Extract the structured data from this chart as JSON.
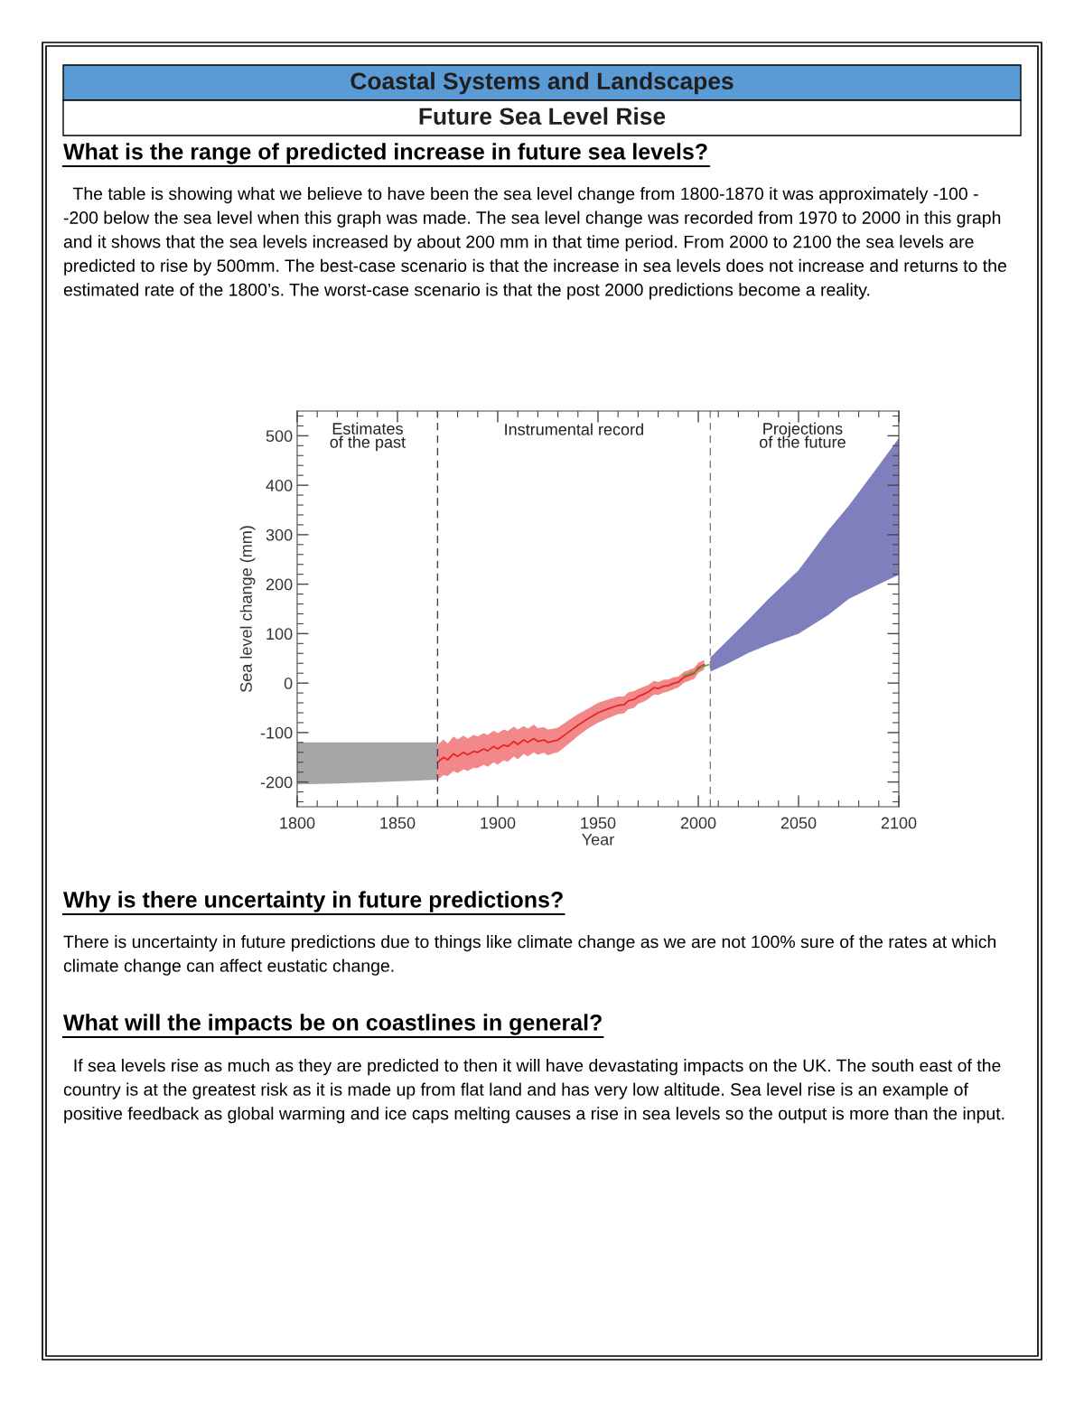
{
  "chart_data": {
    "type": "line",
    "title": "Coastal Systems and Landscapes",
    "subtitle": "Future Sea Level Rise",
    "xlabel": "Year",
    "ylabel": "Sea level change (mm)",
    "annotations": [
      "What is the range of predicted increase in future sea levels?",
      " The table is showing what we believe to have been the sea level change from 1800-1870 it was approximately -100 - -200 below the sea level when this graph was made. The sea level change was recorded from 1970 to 2000 in this graph and it shows that the sea levels increased by about 200 mm in that time period. From 2000 to 2100 the sea levels are predicted to rise by 500mm. The best-case scenario is that the increase in sea levels does not increase and returns to the estimated rate of the 1800’s. The worst-case scenario is that the post 2000 predictions become a reality.",
      "Why is there uncertainty in future predictions?",
      "There is uncertainty in future predictions due to things like climate change as we are not 100% sure of the rates at which climate change can affect eustatic change.",
      "What will the impacts be on coastlines in general?",
      " If sea levels rise as much as they are predicted to then it will have devastating impacts on the UK. The south east of the country is at the greatest risk as it is made up from flat land and has very low altitude. Sea level rise is an example of positive feedback as global warming and ice caps melting causes a rise in sea levels so the output is more than the input.",
      "Estimates\nof the past",
      "Instrumental record",
      "Projections\nof the future"
    ],
    "xlim": [
      1800,
      2100
    ],
    "ylim": [
      -250,
      550
    ],
    "xticks": [
      1800,
      1850,
      1900,
      1950,
      2000,
      2050,
      2100,
      {
        "value": 1810,
        "label": null
      },
      {
        "value": 1820,
        "label": null
      },
      {
        "value": 1830,
        "label": null
      },
      {
        "value": 1840,
        "label": null
      },
      {
        "value": 1860,
        "label": null
      },
      {
        "value": 1870,
        "label": null
      },
      {
        "value": 1880,
        "label": null
      },
      {
        "value": 1890,
        "label": null
      },
      {
        "value": 1910,
        "label": null
      },
      {
        "value": 1920,
        "label": null
      },
      {
        "value": 1930,
        "label": null
      },
      {
        "value": 1940,
        "label": null
      },
      {
        "value": 1960,
        "label": null
      },
      {
        "value": 1970,
        "label": null
      },
      {
        "value": 1980,
        "label": null
      },
      {
        "value": 1990,
        "label": null
      },
      {
        "value": 2010,
        "label": null
      },
      {
        "value": 2020,
        "label": null
      },
      {
        "value": 2030,
        "label": null
      },
      {
        "value": 2040,
        "label": null
      },
      {
        "value": 2060,
        "label": null
      },
      {
        "value": 2070,
        "label": null
      },
      {
        "value": 2080,
        "label": null
      },
      {
        "value": 2090,
        "label": null
      }
    ],
    "yticks": [
      -200,
      -100,
      0,
      100,
      200,
      300,
      400,
      500,
      {
        "value": -240,
        "label": null
      },
      {
        "value": -220,
        "label": null
      },
      {
        "value": -180,
        "label": null
      },
      {
        "value": -160,
        "label": null
      },
      {
        "value": -140,
        "label": null
      },
      {
        "value": -120,
        "label": null
      },
      {
        "value": -80,
        "label": null
      },
      {
        "value": -60,
        "label": null
      },
      {
        "value": -40,
        "label": null
      },
      {
        "value": -20,
        "label": null
      },
      {
        "value": 20,
        "label": null
      },
      {
        "value": 40,
        "label": null
      },
      {
        "value": 60,
        "label": null
      },
      {
        "value": 80,
        "label": null
      },
      {
        "value": 120,
        "label": null
      },
      {
        "value": 140,
        "label": null
      },
      {
        "value": 160,
        "label": null
      },
      {
        "value": 180,
        "label": null
      },
      {
        "value": 220,
        "label": null
      },
      {
        "value": 240,
        "label": null
      },
      {
        "value": 260,
        "label": null
      },
      {
        "value": 280,
        "label": null
      },
      {
        "value": 320,
        "label": null
      },
      {
        "value": 340,
        "label": null
      },
      {
        "value": 360,
        "label": null
      },
      {
        "value": 380,
        "label": null
      },
      {
        "value": 420,
        "label": null
      },
      {
        "value": 440,
        "label": null
      },
      {
        "value": 460,
        "label": null
      },
      {
        "value": 480,
        "label": null
      },
      {
        "value": 520,
        "label": null
      },
      {
        "value": 540,
        "label": null
      }
    ],
    "ref_lines": [
      {
        "axis": "x",
        "value": 1870,
        "line_style": "dashed",
        "color": "#404040"
      },
      {
        "axis": "x",
        "value": 2006,
        "line_style": "dashed",
        "color": "#808080"
      }
    ],
    "grid": false,
    "legend": false,
    "marker": "none",
    "line_style": "solid",
    "series": [
      {
        "type": "area",
        "color": "#a6a6a6",
        "x": [
          1800,
          1820,
          1840,
          1860,
          1870
        ],
        "values": [
          null,
          null,
          null,
          null,
          null
        ],
        "lower": [
          -205,
          -203,
          -200,
          -197,
          -195
        ],
        "upper": [
          -120,
          -120,
          -120,
          -120,
          -120
        ]
      },
      {
        "color": "#e8262a",
        "x": [
          1870,
          1873,
          1875,
          1878,
          1880,
          1883,
          1885,
          1888,
          1890,
          1893,
          1895,
          1898,
          1900,
          1903,
          1905,
          1908,
          1910,
          1913,
          1915,
          1918,
          1920,
          1923,
          1925,
          1928,
          1930,
          1935,
          1940,
          1945,
          1950,
          1955,
          1960,
          1963,
          1965,
          1968,
          1970,
          1973,
          1975,
          1978,
          1980,
          1983,
          1985,
          1988,
          1990,
          1993,
          1995,
          1998,
          2000,
          2003
        ],
        "values": [
          -160,
          -150,
          -155,
          -143,
          -148,
          -140,
          -145,
          -138,
          -140,
          -133,
          -137,
          -128,
          -133,
          -125,
          -128,
          -118,
          -124,
          -115,
          -120,
          -112,
          -118,
          -115,
          -120,
          -117,
          -115,
          -100,
          -85,
          -72,
          -60,
          -52,
          -45,
          -44,
          -36,
          -33,
          -27,
          -22,
          -18,
          -9,
          -11,
          -6,
          -5,
          0,
          2,
          12,
          15,
          20,
          31,
          37
        ],
        "lower": [
          -195,
          -186,
          -188,
          -178,
          -182,
          -174,
          -178,
          -171,
          -172,
          -165,
          -169,
          -160,
          -165,
          -156,
          -159,
          -148,
          -154,
          -143,
          -148,
          -140,
          -145,
          -141,
          -146,
          -142,
          -140,
          -124,
          -107,
          -92,
          -80,
          -71,
          -63,
          -61,
          -53,
          -50,
          -42,
          -37,
          -32,
          -23,
          -24,
          -19,
          -17,
          -12,
          -9,
          1,
          4,
          9,
          21,
          27
        ],
        "upper": [
          -125,
          -114,
          -122,
          -108,
          -114,
          -106,
          -112,
          -105,
          -108,
          -101,
          -105,
          -96,
          -101,
          -94,
          -97,
          -88,
          -94,
          -87,
          -92,
          -84,
          -91,
          -89,
          -94,
          -92,
          -90,
          -76,
          -63,
          -52,
          -40,
          -33,
          -27,
          -27,
          -19,
          -16,
          -12,
          -7,
          -4,
          5,
          2,
          7,
          7,
          12,
          13,
          23,
          26,
          31,
          41,
          47
        ]
      },
      {
        "color": "#5aab3c",
        "x": [
          1993,
          1996,
          1999,
          2002,
          2005
        ],
        "values": [
          15,
          20,
          24,
          33,
          37
        ]
      },
      {
        "type": "area",
        "color": "#7f7fbd",
        "x": [
          2006,
          2015,
          2025,
          2035,
          2050,
          2065,
          2075,
          2090,
          2100
        ],
        "values": [
          null,
          null,
          null,
          null,
          null,
          null,
          null,
          null,
          null
        ],
        "lower": [
          23,
          40,
          61,
          78,
          100,
          138,
          170,
          200,
          219
        ],
        "upper": [
          52,
          88,
          128,
          170,
          228,
          310,
          358,
          440,
          495
        ]
      }
    ]
  }
}
